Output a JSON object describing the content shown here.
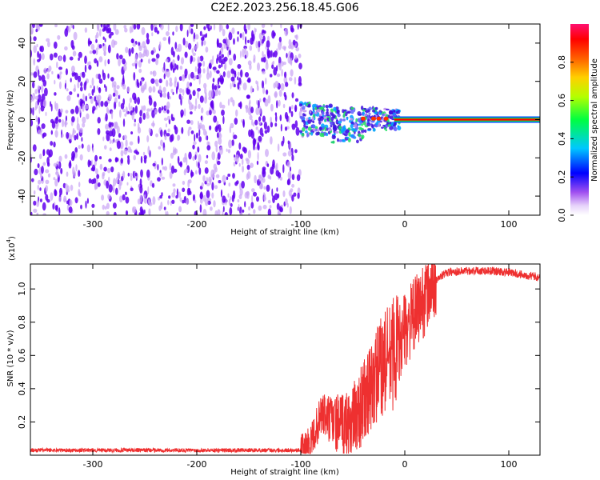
{
  "title": "C2E2.2023.256.18.45.G06",
  "colors": {
    "noise_dark": "#6200ee",
    "noise_light": "#c9a4f5",
    "snr_line": "#ee3030"
  },
  "chart_data": [
    {
      "type": "heatmap",
      "xlabel": "Height of straight line (km)",
      "ylabel": "Frequency (Hz)",
      "xlim": [
        -360,
        130
      ],
      "ylim": [
        -50,
        50
      ],
      "xticks": [
        -300,
        -200,
        -100,
        0,
        100
      ],
      "yticks": [
        -40,
        -20,
        0,
        20,
        40
      ],
      "description_of_content": "broadband noise for height < -100 km; narrowing signal near 0 Hz from -100 to 0 km; strong carrier line at 0 Hz for height > 0 km",
      "carrier_frequency_hz": 0,
      "colorbar": {
        "label": "Normalized spectral amplitude",
        "range": [
          0,
          1
        ],
        "ticks": [
          0.0,
          0.2,
          0.4,
          0.6,
          0.8
        ]
      }
    },
    {
      "type": "line",
      "xlabel": "Height of straight line (km)",
      "ylabel": "SNR (10 * v/v)",
      "yscale_label": "(x10",
      "yscale_exp": "4",
      "xlim": [
        -360,
        130
      ],
      "ylim": [
        0,
        1.15
      ],
      "xticks": [
        -300,
        -200,
        -100,
        0,
        100
      ],
      "yticks": [
        0.2,
        0.4,
        0.6,
        0.8,
        1.0
      ],
      "series": [
        {
          "x": [
            -360,
            -300,
            -200,
            -120,
            -100,
            -90,
            -80,
            -70,
            -60,
            -50,
            -40,
            -35,
            -30,
            -20,
            -10,
            0,
            10,
            20,
            30,
            40,
            60,
            80,
            100,
            130
          ],
          "y": [
            0.03,
            0.03,
            0.03,
            0.03,
            0.03,
            0.08,
            0.25,
            0.2,
            0.18,
            0.2,
            0.32,
            0.35,
            0.45,
            0.55,
            0.62,
            0.75,
            0.85,
            0.95,
            1.05,
            1.1,
            1.11,
            1.11,
            1.1,
            1.07
          ]
        }
      ]
    }
  ]
}
